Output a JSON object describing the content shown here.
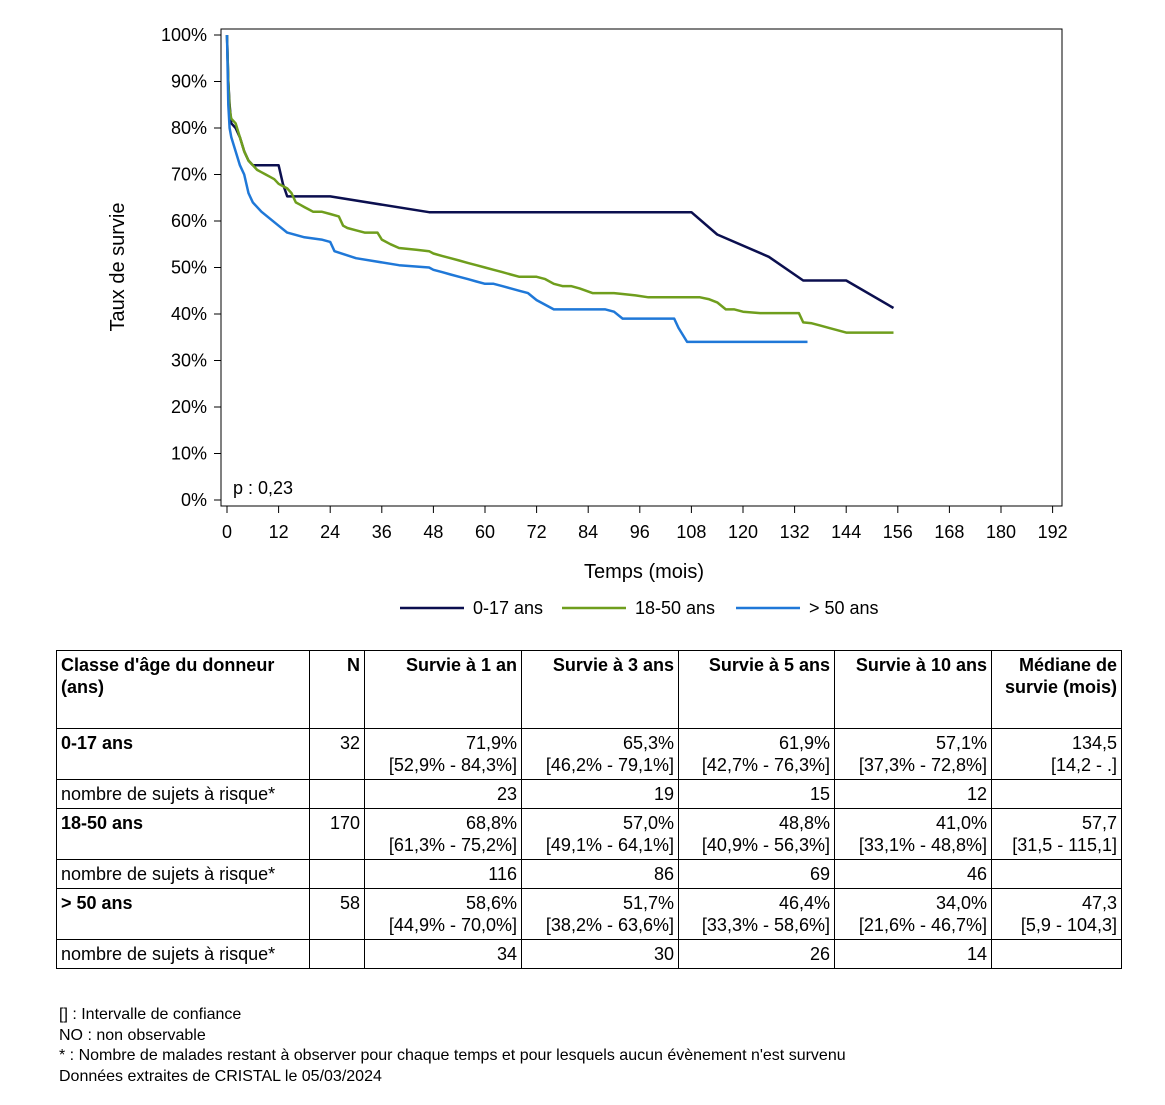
{
  "chart_data": {
    "type": "line",
    "ylabel": "Taux de survie",
    "xlabel": "Temps (mois)",
    "xlim": [
      0,
      192
    ],
    "ylim": [
      0,
      100
    ],
    "x_ticks": [
      "0",
      "12",
      "24",
      "36",
      "48",
      "60",
      "72",
      "84",
      "96",
      "108",
      "120",
      "132",
      "144",
      "156",
      "168",
      "180",
      "192"
    ],
    "y_ticks": [
      "0%",
      "10%",
      "20%",
      "30%",
      "40%",
      "50%",
      "60%",
      "70%",
      "80%",
      "90%",
      "100%"
    ],
    "annotation": "p : 0,23",
    "grid": false,
    "legend_position": "bottom",
    "series": [
      {
        "name": "0-17 ans",
        "color": "#0b0f4f",
        "x": [
          0,
          0.3,
          0.6,
          1,
          2,
          3,
          4,
          5,
          6,
          7,
          12,
          13,
          14,
          15,
          24,
          47,
          108,
          114,
          126,
          134,
          144,
          155
        ],
        "y": [
          100,
          90,
          85,
          81,
          80,
          78,
          75,
          73,
          72,
          72,
          72,
          68,
          65.3,
          65.3,
          65.3,
          61.9,
          61.9,
          57.1,
          52.3,
          47.2,
          47.2,
          41.3
        ]
      },
      {
        "name": "18-50 ans",
        "color": "#6f9e1d",
        "x": [
          0,
          0.3,
          0.6,
          1,
          2,
          3,
          4,
          5,
          6,
          7,
          8,
          9,
          10,
          11,
          12,
          13,
          14,
          15,
          16,
          17,
          18,
          19,
          20,
          22,
          24,
          26,
          27,
          28,
          30,
          32,
          35,
          36,
          38,
          40,
          42,
          44,
          47,
          48,
          50,
          52,
          54,
          56,
          58,
          60,
          62,
          64,
          66,
          68,
          70,
          72,
          74,
          76,
          78,
          80,
          82,
          85,
          88,
          90,
          92,
          95,
          98,
          100,
          103,
          106,
          108,
          110,
          112,
          114,
          116,
          118,
          120,
          124,
          128,
          132,
          133,
          134,
          136,
          138,
          140,
          144,
          148,
          152,
          155
        ],
        "y": [
          100,
          90,
          84,
          82,
          81,
          78,
          75,
          73,
          72,
          71,
          70.5,
          70,
          69.5,
          69,
          68,
          67.5,
          67,
          66,
          64,
          63.5,
          63,
          62.5,
          62,
          62,
          61.5,
          61,
          59,
          58.5,
          58,
          57.5,
          57.5,
          56,
          55,
          54.2,
          54,
          53.8,
          53.5,
          53,
          52.5,
          52,
          51.5,
          51,
          50.5,
          50,
          49.5,
          49,
          48.5,
          48,
          48,
          48,
          47.5,
          46.5,
          46,
          46,
          45.5,
          44.5,
          44.5,
          44.5,
          44.3,
          44,
          43.6,
          43.6,
          43.6,
          43.6,
          43.6,
          43.6,
          43.2,
          42.5,
          41,
          41,
          40.5,
          40.2,
          40.2,
          40.2,
          40.2,
          38.2,
          38,
          37.5,
          37,
          36,
          36,
          36,
          36
        ]
      },
      {
        "name": "> 50 ans",
        "color": "#1f78d8",
        "x": [
          0,
          0.3,
          0.6,
          1,
          2,
          3,
          4,
          5,
          6,
          8,
          10,
          12,
          14,
          18,
          22,
          24,
          25,
          30,
          40,
          47,
          48,
          50,
          52,
          54,
          56,
          58,
          60,
          62,
          64,
          66,
          68,
          70,
          72,
          76,
          80,
          84,
          88,
          90,
          92,
          96,
          100,
          104,
          105,
          107,
          108,
          110,
          114,
          120,
          130,
          135
        ],
        "y": [
          100,
          85,
          80,
          78,
          75,
          72,
          70,
          66,
          64,
          62,
          60.5,
          59,
          57.5,
          56.5,
          56,
          55.5,
          53.5,
          52,
          50.5,
          50,
          49.5,
          49,
          48.5,
          48,
          47.5,
          47,
          46.5,
          46.5,
          46,
          45.5,
          45,
          44.5,
          43,
          41,
          41,
          41,
          41,
          40.5,
          39,
          39,
          39,
          39,
          37,
          34,
          34,
          34,
          34,
          34,
          34,
          34
        ]
      }
    ]
  },
  "table": {
    "headers": [
      "Classe d'âge du donneur (ans)",
      "N",
      "Survie à 1 an",
      "Survie à 3 ans",
      "Survie à 5 ans",
      "Survie à 10 ans",
      "Médiane de survie (mois)"
    ],
    "groups": [
      {
        "label": "0-17 ans",
        "n": "32",
        "values": [
          "71,9%",
          "65,3%",
          "61,9%",
          "57,1%",
          "134,5"
        ],
        "ci": [
          "[52,9% - 84,3%]",
          "[46,2% - 79,1%]",
          "[42,7% - 76,3%]",
          "[37,3% - 72,8%]",
          "[14,2 - .]"
        ],
        "risk_label": "nombre de sujets à risque*",
        "risk": [
          "23",
          "19",
          "15",
          "12"
        ]
      },
      {
        "label": "18-50 ans",
        "n": "170",
        "values": [
          "68,8%",
          "57,0%",
          "48,8%",
          "41,0%",
          "57,7"
        ],
        "ci": [
          "[61,3% - 75,2%]",
          "[49,1% - 64,1%]",
          "[40,9% - 56,3%]",
          "[33,1% - 48,8%]",
          "[31,5 - 115,1]"
        ],
        "risk_label": "nombre de sujets à risque*",
        "risk": [
          "116",
          "86",
          "69",
          "46"
        ]
      },
      {
        "label": "> 50 ans",
        "n": "58",
        "values": [
          "58,6%",
          "51,7%",
          "46,4%",
          "34,0%",
          "47,3"
        ],
        "ci": [
          "[44,9% - 70,0%]",
          "[38,2% - 63,6%]",
          "[33,3% - 58,6%]",
          "[21,6% - 46,7%]",
          "[5,9 - 104,3]"
        ],
        "risk_label": "nombre de sujets à risque*",
        "risk": [
          "34",
          "30",
          "26",
          "14"
        ]
      }
    ]
  },
  "notes": [
    "[] : Intervalle de confiance",
    "NO : non observable",
    "* : Nombre de malades restant à observer pour chaque temps et pour lesquels aucun évènement n'est survenu",
    "Données extraites de CRISTAL le 05/03/2024"
  ]
}
